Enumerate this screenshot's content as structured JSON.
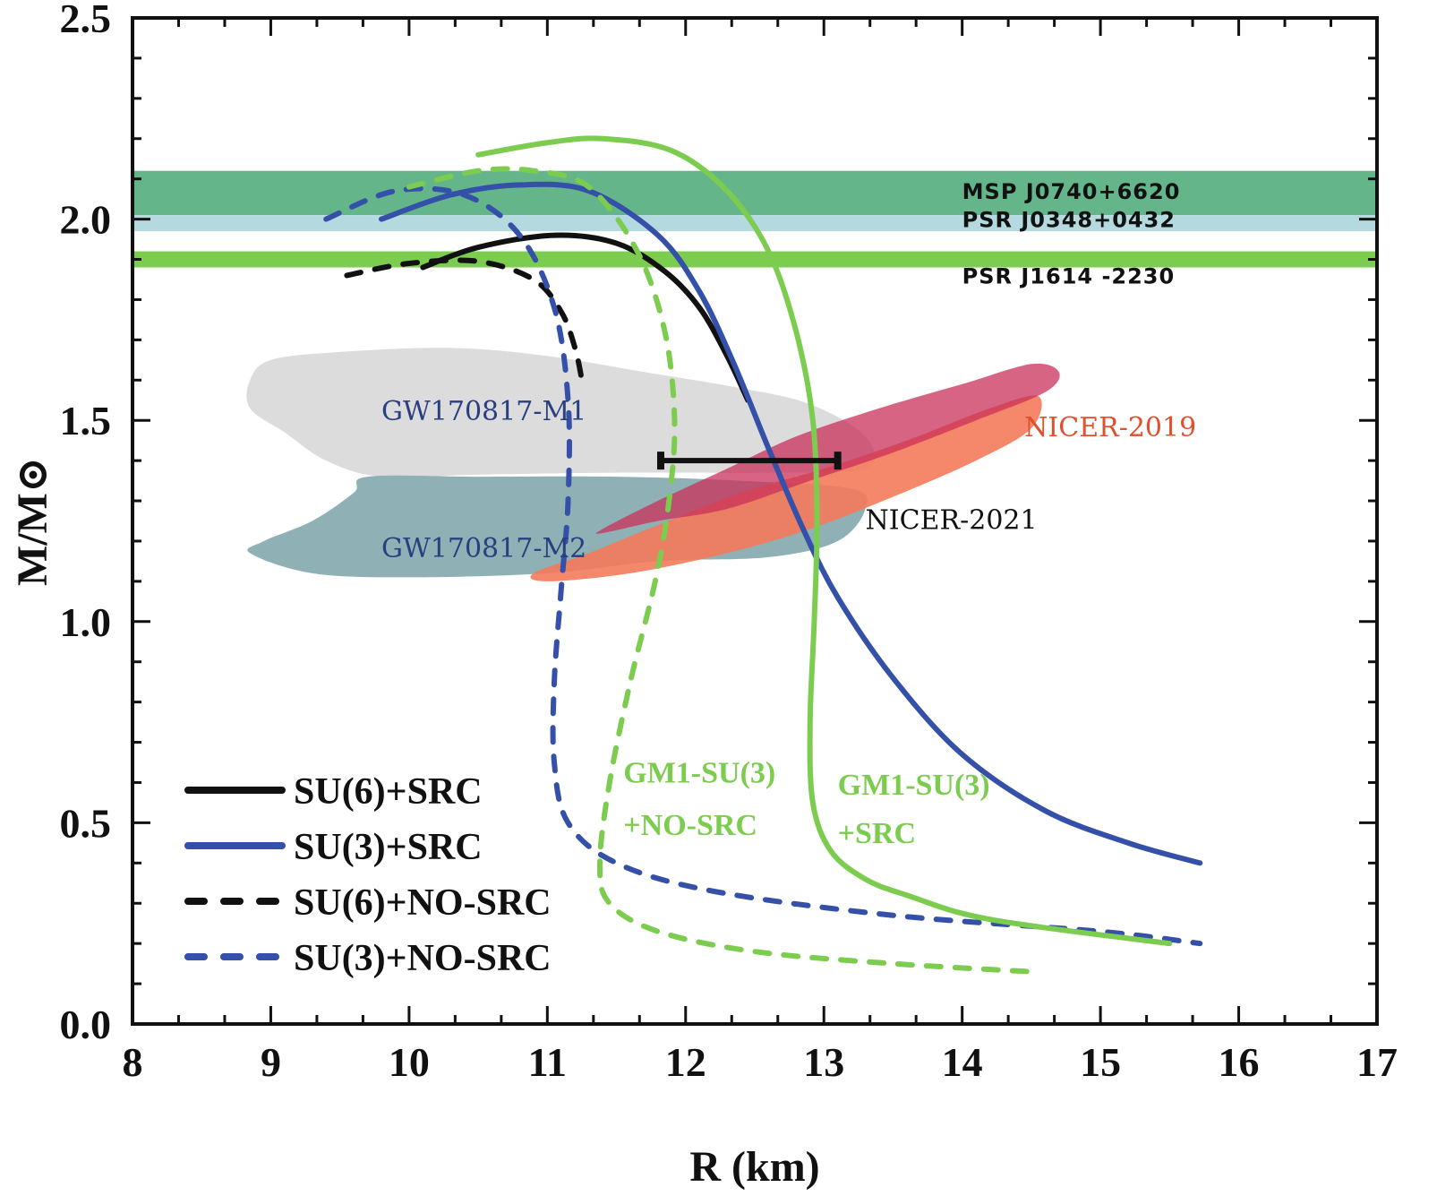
{
  "chart_data": {
    "type": "line",
    "title": "",
    "xlabel": "R (km)",
    "ylabel": "M/M⊙",
    "xlim": [
      8,
      17
    ],
    "ylim": [
      0.0,
      2.5
    ],
    "xticks": [
      8,
      9,
      10,
      11,
      12,
      13,
      14,
      15,
      16,
      17
    ],
    "xtick_labels": [
      "8",
      "9",
      "10",
      "11",
      "12",
      "13",
      "14",
      "15",
      "16",
      "17"
    ],
    "yticks": [
      0.0,
      0.5,
      1.0,
      1.5,
      2.0,
      2.5
    ],
    "ytick_labels": [
      "0.0",
      "0.5",
      "1.0",
      "1.5",
      "2.0",
      "2.5"
    ],
    "x_minor_step": 0.333,
    "y_minor_step": 0.1,
    "grid": false,
    "legend_position": "bottom-left",
    "bands": [
      {
        "name": "MSP J0740+6620",
        "ymin": 2.01,
        "ymax": 2.12,
        "color": "#64b58a"
      },
      {
        "name": "PSR J0348+0432",
        "ymin": 1.97,
        "ymax": 2.01,
        "color": "#b4d9de"
      },
      {
        "name": "PSR J1614 -2230",
        "ymin": 1.88,
        "ymax": 1.92,
        "color": "#7ccc4f"
      }
    ],
    "band_labels": [
      {
        "text": "MSP  J0740+6620",
        "x": 14.0,
        "y": 2.05
      },
      {
        "text": "PSR  J0348+0432",
        "x": 14.0,
        "y": 1.98
      },
      {
        "text": "PSR  J1614 -2230",
        "x": 14.0,
        "y": 1.84
      }
    ],
    "regions": [
      {
        "name": "GW170817-M1",
        "color": "#dcdcdc",
        "label_color": "#2a3f7f",
        "label_pos": [
          9.8,
          1.5
        ],
        "polygon": [
          [
            8.85,
            1.6
          ],
          [
            9.0,
            1.65
          ],
          [
            9.5,
            1.67
          ],
          [
            10.3,
            1.68
          ],
          [
            11.0,
            1.66
          ],
          [
            11.7,
            1.62
          ],
          [
            12.4,
            1.58
          ],
          [
            12.9,
            1.54
          ],
          [
            13.3,
            1.46
          ],
          [
            13.3,
            1.38
          ],
          [
            12.6,
            1.37
          ],
          [
            11.5,
            1.37
          ],
          [
            10.5,
            1.365
          ],
          [
            9.8,
            1.36
          ],
          [
            9.4,
            1.4
          ],
          [
            9.1,
            1.47
          ],
          [
            8.85,
            1.53
          ]
        ]
      },
      {
        "name": "GW170817-M2",
        "color": "#8fb0b4",
        "label_color": "#2a3f7f",
        "label_pos": [
          9.8,
          1.16
        ],
        "polygon": [
          [
            9.7,
            1.36
          ],
          [
            10.5,
            1.36
          ],
          [
            11.5,
            1.36
          ],
          [
            12.4,
            1.35
          ],
          [
            13.2,
            1.33
          ],
          [
            13.3,
            1.28
          ],
          [
            13.1,
            1.2
          ],
          [
            12.6,
            1.16
          ],
          [
            11.8,
            1.15
          ],
          [
            11.0,
            1.12
          ],
          [
            10.0,
            1.11
          ],
          [
            9.3,
            1.12
          ],
          [
            8.85,
            1.17
          ],
          [
            8.95,
            1.2
          ],
          [
            9.3,
            1.25
          ],
          [
            9.6,
            1.32
          ]
        ]
      },
      {
        "name": "NICER-2019",
        "color": "#f47a5a",
        "opacity": 0.9,
        "label_color": "#e0502d",
        "label_pos": [
          14.45,
          1.46
        ],
        "polygon": [
          [
            10.9,
            1.12
          ],
          [
            11.3,
            1.17
          ],
          [
            11.8,
            1.24
          ],
          [
            12.4,
            1.32
          ],
          [
            13.0,
            1.38
          ],
          [
            13.6,
            1.45
          ],
          [
            14.2,
            1.53
          ],
          [
            14.55,
            1.56
          ],
          [
            14.5,
            1.48
          ],
          [
            14.1,
            1.4
          ],
          [
            13.5,
            1.31
          ],
          [
            12.9,
            1.23
          ],
          [
            12.3,
            1.17
          ],
          [
            11.6,
            1.12
          ],
          [
            11.0,
            1.1
          ]
        ]
      },
      {
        "name": "NICER-2021",
        "color": "#c9305a",
        "opacity": 0.75,
        "label_color": "#111111",
        "label_pos": [
          13.3,
          1.23
        ],
        "polygon": [
          [
            11.4,
            1.23
          ],
          [
            11.8,
            1.3
          ],
          [
            12.3,
            1.38
          ],
          [
            12.8,
            1.46
          ],
          [
            13.4,
            1.53
          ],
          [
            14.0,
            1.59
          ],
          [
            14.5,
            1.64
          ],
          [
            14.7,
            1.62
          ],
          [
            14.6,
            1.57
          ],
          [
            14.1,
            1.5
          ],
          [
            13.5,
            1.42
          ],
          [
            12.9,
            1.35
          ],
          [
            12.3,
            1.28
          ],
          [
            11.8,
            1.25
          ],
          [
            11.4,
            1.22
          ]
        ]
      }
    ],
    "error_bar": {
      "name": "radius-constraint",
      "xmin": 11.82,
      "xmax": 13.1,
      "y": 1.4,
      "color": "#111111"
    },
    "series": [
      {
        "name": "SU(6)+SRC",
        "style": "solid",
        "color": "#111111",
        "legend": true,
        "x": [
          10.1,
          10.5,
          11.05,
          11.5,
          11.85,
          12.1,
          12.3,
          12.45
        ],
        "y": [
          1.88,
          1.93,
          1.96,
          1.94,
          1.87,
          1.78,
          1.66,
          1.55
        ]
      },
      {
        "name": "SU(3)+SRC",
        "style": "solid",
        "color": "#3450a8",
        "legend": true,
        "x": [
          9.8,
          10.3,
          10.8,
          11.3,
          11.8,
          12.1,
          12.35,
          12.6,
          12.85,
          13.1,
          13.5,
          14.0,
          14.6,
          15.2,
          15.72
        ],
        "y": [
          2.0,
          2.06,
          2.085,
          2.07,
          1.96,
          1.82,
          1.64,
          1.43,
          1.23,
          1.06,
          0.86,
          0.67,
          0.53,
          0.45,
          0.4
        ]
      },
      {
        "name": "SU(6)+NO-SRC",
        "style": "dashed",
        "color": "#111111",
        "legend": true,
        "x": [
          9.55,
          10.0,
          10.5,
          10.9,
          11.1,
          11.2,
          11.25
        ],
        "y": [
          1.86,
          1.89,
          1.895,
          1.85,
          1.77,
          1.68,
          1.6
        ]
      },
      {
        "name": "SU(3)+NO-SRC",
        "style": "dashed",
        "color": "#3450a8",
        "legend": true,
        "x": [
          9.4,
          9.9,
          10.4,
          10.8,
          11.05,
          11.15,
          11.15,
          11.1,
          11.05,
          11.05,
          11.15,
          11.5,
          12.2,
          13.5,
          15.0,
          15.72
        ],
        "y": [
          2.0,
          2.07,
          2.06,
          1.96,
          1.78,
          1.55,
          1.3,
          1.08,
          0.85,
          0.65,
          0.5,
          0.4,
          0.33,
          0.27,
          0.23,
          0.2
        ]
      },
      {
        "name": "GM1-SU(3)+SRC",
        "style": "solid",
        "color": "#7ccc4f",
        "legend": false,
        "x": [
          10.5,
          11.0,
          11.4,
          11.9,
          12.3,
          12.6,
          12.8,
          12.92,
          12.95,
          12.93,
          12.9,
          12.92,
          13.05,
          13.3,
          13.6,
          14.2,
          15.5
        ],
        "y": [
          2.16,
          2.19,
          2.2,
          2.17,
          2.07,
          1.92,
          1.72,
          1.5,
          1.25,
          1.0,
          0.75,
          0.55,
          0.43,
          0.36,
          0.32,
          0.26,
          0.2
        ]
      },
      {
        "name": "GM1-SU(3)+NO-SRC",
        "style": "dashed",
        "color": "#7ccc4f",
        "legend": false,
        "x": [
          10.0,
          10.5,
          10.9,
          11.3,
          11.65,
          11.85,
          11.92,
          11.88,
          11.78,
          11.6,
          11.45,
          11.38,
          11.45,
          11.8,
          12.5,
          13.5,
          14.5
        ],
        "y": [
          2.08,
          2.12,
          2.12,
          2.08,
          1.92,
          1.72,
          1.5,
          1.3,
          1.1,
          0.85,
          0.6,
          0.4,
          0.3,
          0.23,
          0.18,
          0.15,
          0.13
        ]
      }
    ],
    "annotations": [
      {
        "text": "GM1-SU(3)",
        "x": 11.55,
        "y": 0.6,
        "color": "#7ccc4f"
      },
      {
        "text": "+NO-SRC",
        "x": 11.55,
        "y": 0.47,
        "color": "#7ccc4f"
      },
      {
        "text": "GM1-SU(3)",
        "x": 13.1,
        "y": 0.57,
        "color": "#7ccc4f"
      },
      {
        "text": "+SRC",
        "x": 13.1,
        "y": 0.45,
        "color": "#7ccc4f"
      }
    ]
  }
}
